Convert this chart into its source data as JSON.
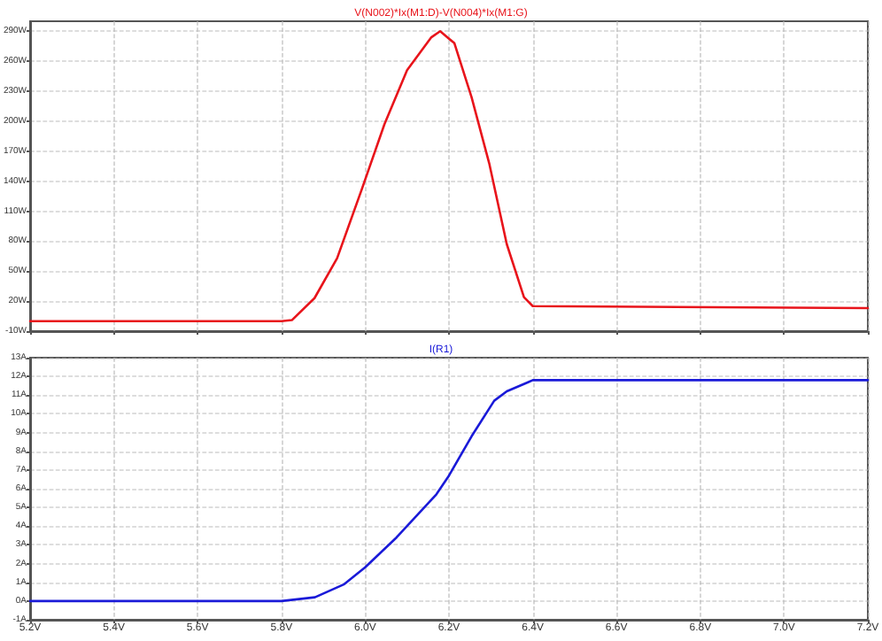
{
  "chart_data": [
    {
      "type": "line",
      "title": "V(N002)*Ix(M1:D)-V(N004)*Ix(M1:G)",
      "tick_labels": "y",
      "grid": true,
      "line_style": "solid",
      "marker": "none",
      "xlim": [
        5.2,
        7.2
      ],
      "xticks": [
        {
          "value": 5.2,
          "label": null
        },
        {
          "value": 5.4,
          "label": null
        },
        {
          "value": 5.6,
          "label": null
        },
        {
          "value": 5.8,
          "label": null
        },
        {
          "value": 6.0,
          "label": null
        },
        {
          "value": 6.2,
          "label": null
        },
        {
          "value": 6.4,
          "label": null
        },
        {
          "value": 6.6,
          "label": null
        },
        {
          "value": 6.8,
          "label": null
        },
        {
          "value": 7.0,
          "label": null
        },
        {
          "value": 7.2,
          "label": null
        }
      ],
      "ylim": [
        -10,
        300
      ],
      "yticks": [
        {
          "value": -10,
          "label": "-10W"
        },
        {
          "value": 20,
          "label": "20W"
        },
        {
          "value": 50,
          "label": "50W"
        },
        {
          "value": 80,
          "label": "80W"
        },
        {
          "value": 110,
          "label": "110W"
        },
        {
          "value": 140,
          "label": "140W"
        },
        {
          "value": 170,
          "label": "170W"
        },
        {
          "value": 200,
          "label": "200W"
        },
        {
          "value": 230,
          "label": "230W"
        },
        {
          "value": 260,
          "label": "260W"
        },
        {
          "value": 290,
          "label": "290W"
        }
      ],
      "series": [
        {
          "color": "#e8141b",
          "x": [
            5.2,
            5.8,
            5.825,
            5.879,
            5.933,
            5.992,
            6.046,
            6.1,
            6.158,
            6.179,
            6.213,
            6.254,
            6.296,
            6.338,
            6.379,
            6.4,
            7.2
          ],
          "values": [
            0,
            0,
            1,
            23,
            63,
            132,
            197,
            251,
            284,
            290,
            278,
            224,
            158,
            77,
            24,
            15,
            13
          ]
        }
      ]
    },
    {
      "type": "line",
      "title": "I(R1)",
      "grid": true,
      "line_style": "solid",
      "marker": "none",
      "xlim": [
        5.2,
        7.2
      ],
      "xticks": [
        {
          "value": 5.2,
          "label": "5.2V"
        },
        {
          "value": 5.4,
          "label": "5.4V"
        },
        {
          "value": 5.6,
          "label": "5.6V"
        },
        {
          "value": 5.8,
          "label": "5.8V"
        },
        {
          "value": 6.0,
          "label": "6.0V"
        },
        {
          "value": 6.2,
          "label": "6.2V"
        },
        {
          "value": 6.4,
          "label": "6.4V"
        },
        {
          "value": 6.6,
          "label": "6.6V"
        },
        {
          "value": 6.8,
          "label": "6.8V"
        },
        {
          "value": 7.0,
          "label": "7.0V"
        },
        {
          "value": 7.2,
          "label": "7.2V"
        }
      ],
      "ylim": [
        -1,
        13
      ],
      "yticks": [
        {
          "value": -1,
          "label": "-1A"
        },
        {
          "value": 0,
          "label": "0A"
        },
        {
          "value": 1,
          "label": "1A"
        },
        {
          "value": 2,
          "label": "2A"
        },
        {
          "value": 3,
          "label": "3A"
        },
        {
          "value": 4,
          "label": "4A"
        },
        {
          "value": 5,
          "label": "5A"
        },
        {
          "value": 6,
          "label": "6A"
        },
        {
          "value": 7,
          "label": "7A"
        },
        {
          "value": 8,
          "label": "8A"
        },
        {
          "value": 9,
          "label": "9A"
        },
        {
          "value": 10,
          "label": "10A"
        },
        {
          "value": 11,
          "label": "11A"
        },
        {
          "value": 12,
          "label": "12A"
        },
        {
          "value": 13,
          "label": "13A"
        }
      ],
      "series": [
        {
          "color": "#1a1ad8",
          "x": [
            5.2,
            5.8,
            5.88,
            5.95,
            6.0,
            6.075,
            6.17,
            6.2,
            6.254,
            6.308,
            6.338,
            6.39,
            6.4,
            7.2
          ],
          "values": [
            0,
            0,
            0.2,
            0.9,
            1.8,
            3.4,
            5.7,
            6.7,
            8.8,
            10.7,
            11.2,
            11.7,
            11.8,
            11.8
          ]
        }
      ]
    }
  ]
}
